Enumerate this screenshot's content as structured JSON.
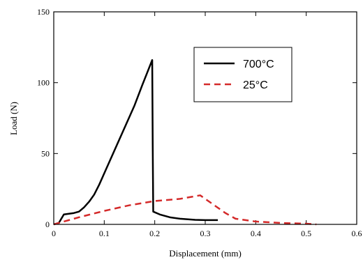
{
  "chart_data": {
    "type": "line",
    "xlabel": "Displacement (mm)",
    "ylabel": "Load (N)",
    "xlim": [
      0,
      0.6
    ],
    "ylim": [
      0,
      150
    ],
    "xticks": [
      0,
      0.1,
      0.2,
      0.3,
      0.4,
      0.5,
      0.6
    ],
    "xtick_labels": [
      "0",
      "0.1",
      "0.2",
      "0.3",
      "0.4",
      "0.5",
      "0.6"
    ],
    "yticks": [
      0,
      50,
      100,
      150
    ],
    "ytick_labels": [
      "0",
      "50",
      "100",
      "150"
    ],
    "grid": false,
    "legend_position": "top-right",
    "series": [
      {
        "name": "700°C",
        "color": "#000000",
        "dash": "solid",
        "points": [
          [
            0,
            0
          ],
          [
            0.01,
            1
          ],
          [
            0.02,
            7
          ],
          [
            0.03,
            7.5
          ],
          [
            0.04,
            8
          ],
          [
            0.05,
            9
          ],
          [
            0.06,
            12
          ],
          [
            0.07,
            16
          ],
          [
            0.08,
            21
          ],
          [
            0.09,
            28
          ],
          [
            0.1,
            36
          ],
          [
            0.12,
            52
          ],
          [
            0.14,
            68
          ],
          [
            0.16,
            84
          ],
          [
            0.175,
            98
          ],
          [
            0.185,
            107
          ],
          [
            0.195,
            116
          ],
          [
            0.196,
            56
          ],
          [
            0.197,
            9
          ],
          [
            0.21,
            7
          ],
          [
            0.23,
            5
          ],
          [
            0.25,
            4
          ],
          [
            0.28,
            3.2
          ],
          [
            0.3,
            3
          ],
          [
            0.325,
            3
          ]
        ]
      },
      {
        "name": "25°C",
        "color": "#d42a2a",
        "dash": "dashed",
        "points": [
          [
            0,
            0
          ],
          [
            0.05,
            5
          ],
          [
            0.1,
            9.5
          ],
          [
            0.15,
            13.5
          ],
          [
            0.2,
            16.5
          ],
          [
            0.25,
            18
          ],
          [
            0.29,
            20.5
          ],
          [
            0.34,
            8
          ],
          [
            0.36,
            4
          ],
          [
            0.4,
            2
          ],
          [
            0.45,
            1
          ],
          [
            0.5,
            0.5
          ],
          [
            0.52,
            0
          ]
        ]
      }
    ]
  }
}
